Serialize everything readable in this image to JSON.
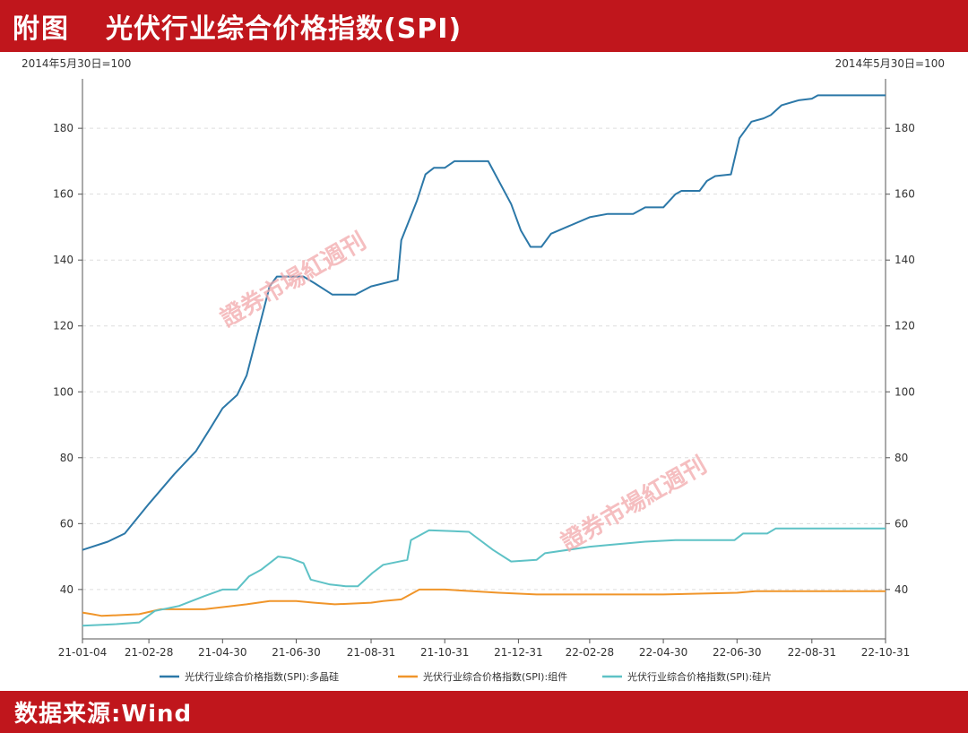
{
  "header": {
    "tag": "附图",
    "title": "光伏行业综合价格指数(SPI)"
  },
  "footer": {
    "source": "数据来源:Wind"
  },
  "axis_unit_left": "2014年5月30日=100",
  "axis_unit_right": "2014年5月30日=100",
  "watermark": {
    "main": "證券市場紅週刊"
  },
  "colors": {
    "polysilicon": "#2c78a8",
    "module": "#f0952a",
    "wafer": "#5ec2c6",
    "brand": "#c0161c"
  },
  "chart_data": {
    "type": "line",
    "title": "光伏行业综合价格指数(SPI)",
    "x_ticks": [
      "21-01-04",
      "21-02-28",
      "21-04-30",
      "21-06-30",
      "21-08-31",
      "21-10-31",
      "21-12-31",
      "22-02-28",
      "22-04-30",
      "22-06-30",
      "22-08-31",
      "22-10-31"
    ],
    "xlim": [
      "2021-01-04",
      "2022-10-31"
    ],
    "ylim": [
      25,
      195
    ],
    "y_ticks": [
      40,
      60,
      80,
      100,
      120,
      140,
      160,
      180
    ],
    "grid": true,
    "legend_position": "bottom",
    "series": [
      {
        "name": "光伏行业综合价格指数(SPI):多晶硅",
        "color": "#2c78a8",
        "points": [
          [
            "2021-01-04",
            52
          ],
          [
            "2021-01-25",
            54.5
          ],
          [
            "2021-02-08",
            57
          ],
          [
            "2021-02-28",
            66
          ],
          [
            "2021-03-21",
            75
          ],
          [
            "2021-04-08",
            82
          ],
          [
            "2021-04-20",
            89
          ],
          [
            "2021-04-30",
            95
          ],
          [
            "2021-05-12",
            99
          ],
          [
            "2021-05-20",
            105
          ],
          [
            "2021-06-01",
            122
          ],
          [
            "2021-06-08",
            132
          ],
          [
            "2021-06-14",
            135
          ],
          [
            "2021-07-06",
            135
          ],
          [
            "2021-07-15",
            133
          ],
          [
            "2021-07-30",
            129.5
          ],
          [
            "2021-08-18",
            129.5
          ],
          [
            "2021-08-31",
            132
          ],
          [
            "2021-09-22",
            134
          ],
          [
            "2021-09-25",
            146
          ],
          [
            "2021-10-08",
            158
          ],
          [
            "2021-10-15",
            166
          ],
          [
            "2021-10-22",
            168
          ],
          [
            "2021-10-31",
            168
          ],
          [
            "2021-11-08",
            170
          ],
          [
            "2021-12-06",
            170
          ],
          [
            "2021-12-25",
            157
          ],
          [
            "2022-01-02",
            149
          ],
          [
            "2022-01-10",
            144
          ],
          [
            "2022-01-19",
            144
          ],
          [
            "2022-01-27",
            148
          ],
          [
            "2022-02-28",
            153
          ],
          [
            "2022-03-15",
            154
          ],
          [
            "2022-04-05",
            154
          ],
          [
            "2022-04-15",
            156
          ],
          [
            "2022-04-30",
            156
          ],
          [
            "2022-05-10",
            160
          ],
          [
            "2022-05-15",
            161
          ],
          [
            "2022-05-30",
            161
          ],
          [
            "2022-06-05",
            164
          ],
          [
            "2022-06-12",
            165.5
          ],
          [
            "2022-06-25",
            166
          ],
          [
            "2022-07-02",
            177
          ],
          [
            "2022-07-12",
            182
          ],
          [
            "2022-07-22",
            183
          ],
          [
            "2022-07-28",
            184
          ],
          [
            "2022-08-06",
            187
          ],
          [
            "2022-08-20",
            188.5
          ],
          [
            "2022-08-31",
            189
          ],
          [
            "2022-09-05",
            190
          ],
          [
            "2022-10-31",
            190
          ]
        ]
      },
      {
        "name": "光伏行业综合价格指数(SPI):组件",
        "color": "#f0952a",
        "points": [
          [
            "2021-01-04",
            33
          ],
          [
            "2021-01-12",
            32.5
          ],
          [
            "2021-01-20",
            32
          ],
          [
            "2021-02-20",
            32.5
          ],
          [
            "2021-03-10",
            34
          ],
          [
            "2021-04-15",
            34
          ],
          [
            "2021-05-20",
            35.5
          ],
          [
            "2021-06-08",
            36.5
          ],
          [
            "2021-06-30",
            36.5
          ],
          [
            "2021-07-15",
            36
          ],
          [
            "2021-08-01",
            35.5
          ],
          [
            "2021-08-31",
            36
          ],
          [
            "2021-09-10",
            36.5
          ],
          [
            "2021-09-25",
            37
          ],
          [
            "2021-10-10",
            40
          ],
          [
            "2021-10-31",
            40
          ],
          [
            "2021-12-15",
            39
          ],
          [
            "2022-01-15",
            38.5
          ],
          [
            "2022-02-28",
            38.5
          ],
          [
            "2022-04-30",
            38.5
          ],
          [
            "2022-06-30",
            39
          ],
          [
            "2022-07-15",
            39.5
          ],
          [
            "2022-10-31",
            39.5
          ]
        ]
      },
      {
        "name": "光伏行业综合价格指数(SPI):硅片",
        "color": "#5ec2c6",
        "points": [
          [
            "2021-01-04",
            29
          ],
          [
            "2021-02-01",
            29.5
          ],
          [
            "2021-02-20",
            30
          ],
          [
            "2021-03-05",
            33.5
          ],
          [
            "2021-03-25",
            35
          ],
          [
            "2021-04-15",
            38
          ],
          [
            "2021-04-30",
            40
          ],
          [
            "2021-05-12",
            40
          ],
          [
            "2021-05-22",
            44
          ],
          [
            "2021-06-01",
            46
          ],
          [
            "2021-06-15",
            50
          ],
          [
            "2021-06-25",
            49.5
          ],
          [
            "2021-07-06",
            48
          ],
          [
            "2021-07-12",
            43
          ],
          [
            "2021-07-28",
            41.5
          ],
          [
            "2021-08-10",
            41
          ],
          [
            "2021-08-20",
            41
          ],
          [
            "2021-09-01",
            45
          ],
          [
            "2021-09-10",
            47.5
          ],
          [
            "2021-09-30",
            49
          ],
          [
            "2021-10-03",
            55
          ],
          [
            "2021-10-18",
            58
          ],
          [
            "2021-11-20",
            57.5
          ],
          [
            "2021-12-10",
            52
          ],
          [
            "2021-12-25",
            48.5
          ],
          [
            "2022-01-15",
            49
          ],
          [
            "2022-01-22",
            51
          ],
          [
            "2022-02-28",
            53
          ],
          [
            "2022-03-15",
            53.5
          ],
          [
            "2022-04-15",
            54.5
          ],
          [
            "2022-05-10",
            55
          ],
          [
            "2022-06-28",
            55
          ],
          [
            "2022-07-05",
            57
          ],
          [
            "2022-07-25",
            57
          ],
          [
            "2022-08-01",
            58.5
          ],
          [
            "2022-10-31",
            58.5
          ]
        ]
      }
    ]
  }
}
